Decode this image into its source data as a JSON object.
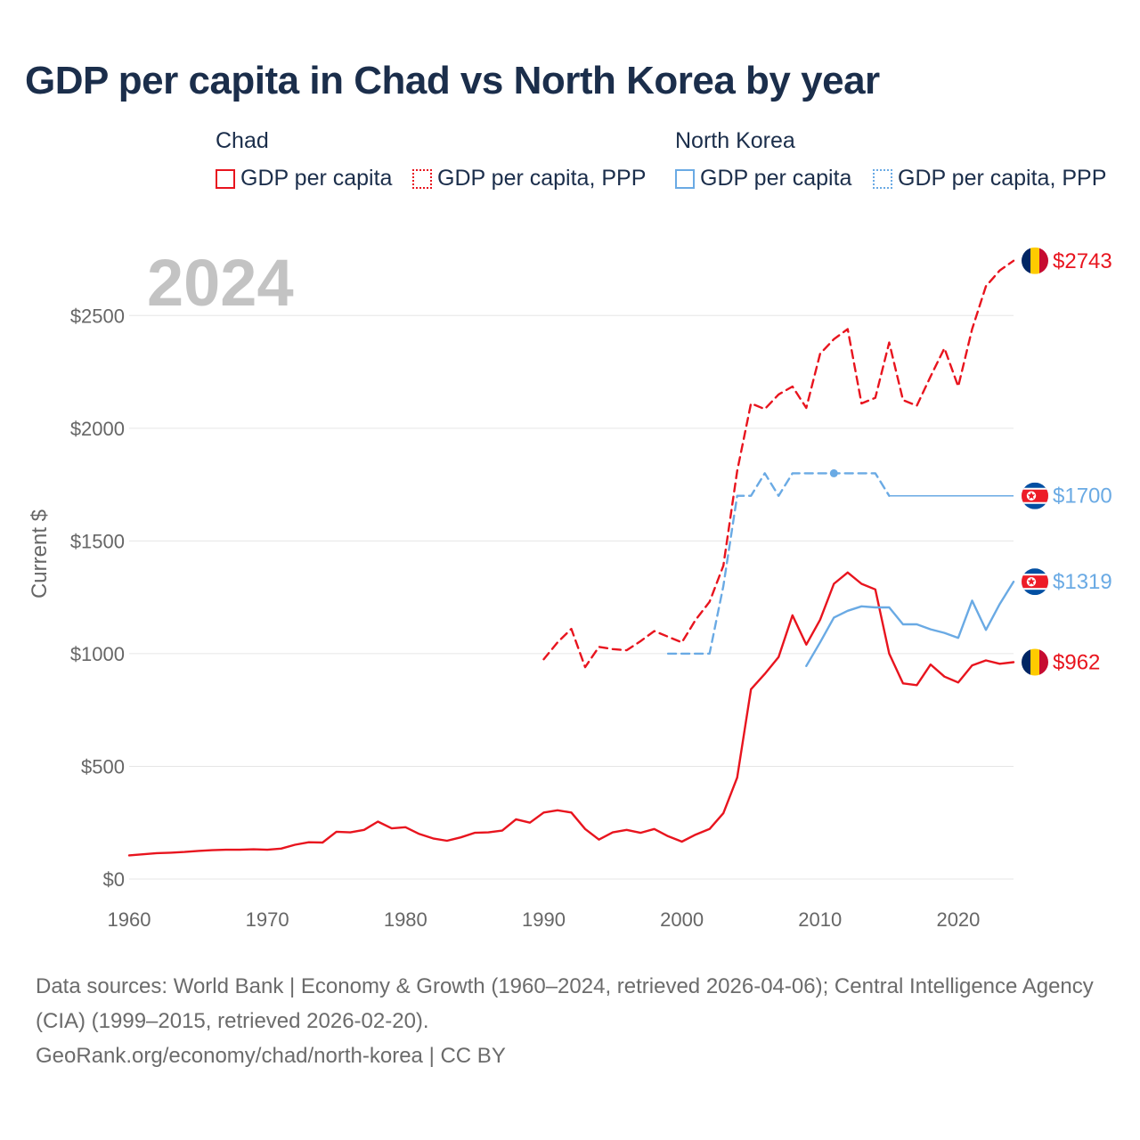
{
  "title": "GDP per capita in Chad vs North Korea by year",
  "legend": {
    "groups": [
      {
        "name": "Chad",
        "items": [
          "GDP per capita",
          "GDP per capita, PPP"
        ]
      },
      {
        "name": "North Korea",
        "items": [
          "GDP per capita",
          "GDP per capita, PPP"
        ]
      }
    ]
  },
  "year_watermark": "2024",
  "footer": {
    "sources": "Data sources: World Bank | Economy & Growth (1960–2024, retrieved 2026-04-06); Central Intelligence Agency (CIA) (1999–2015, retrieved 2026-02-20).",
    "credit": "GeoRank.org/economy/chad/north-korea | CC BY"
  },
  "colors": {
    "chad": "#e8141e",
    "north_korea": "#6aaae4",
    "grid": "#e6e6e6",
    "text": "#1b2e4b"
  },
  "chart_data": {
    "type": "line",
    "title": "GDP per capita in Chad vs North Korea by year",
    "xlabel": "",
    "ylabel": "Current $",
    "xlim": [
      1960,
      2024
    ],
    "ylim": [
      0,
      2750
    ],
    "x_ticks": [
      1960,
      1970,
      1980,
      1990,
      2000,
      2010,
      2020
    ],
    "y_ticks": [
      0,
      500,
      1000,
      1500,
      2000,
      2500
    ],
    "y_tick_labels": [
      "$0",
      "$500",
      "$1000",
      "$1500",
      "$2000",
      "$2500"
    ],
    "grid": true,
    "series": [
      {
        "name": "Chad — GDP per capita",
        "country": "Chad",
        "style": "solid",
        "color": "#e8141e",
        "end_label": "$962",
        "points": [
          [
            1960,
            105
          ],
          [
            1961,
            110
          ],
          [
            1962,
            115
          ],
          [
            1963,
            117
          ],
          [
            1964,
            120
          ],
          [
            1965,
            125
          ],
          [
            1966,
            128
          ],
          [
            1967,
            130
          ],
          [
            1968,
            130
          ],
          [
            1969,
            132
          ],
          [
            1970,
            130
          ],
          [
            1971,
            135
          ],
          [
            1972,
            152
          ],
          [
            1973,
            163
          ],
          [
            1974,
            162
          ],
          [
            1975,
            210
          ],
          [
            1976,
            207
          ],
          [
            1977,
            218
          ],
          [
            1978,
            255
          ],
          [
            1979,
            225
          ],
          [
            1980,
            230
          ],
          [
            1981,
            200
          ],
          [
            1982,
            180
          ],
          [
            1983,
            170
          ],
          [
            1984,
            185
          ],
          [
            1985,
            205
          ],
          [
            1986,
            207
          ],
          [
            1987,
            215
          ],
          [
            1988,
            265
          ],
          [
            1989,
            250
          ],
          [
            1990,
            295
          ],
          [
            1991,
            305
          ],
          [
            1992,
            295
          ],
          [
            1993,
            222
          ],
          [
            1994,
            175
          ],
          [
            1995,
            207
          ],
          [
            1996,
            218
          ],
          [
            1997,
            205
          ],
          [
            1998,
            222
          ],
          [
            1999,
            190
          ],
          [
            2000,
            166
          ],
          [
            2001,
            197
          ],
          [
            2002,
            222
          ],
          [
            2003,
            292
          ],
          [
            2004,
            450
          ],
          [
            2005,
            842
          ],
          [
            2006,
            910
          ],
          [
            2007,
            985
          ],
          [
            2008,
            1170
          ],
          [
            2009,
            1040
          ],
          [
            2010,
            1150
          ],
          [
            2011,
            1310
          ],
          [
            2012,
            1360
          ],
          [
            2013,
            1310
          ],
          [
            2014,
            1285
          ],
          [
            2015,
            1000
          ],
          [
            2016,
            868
          ],
          [
            2017,
            860
          ],
          [
            2018,
            952
          ],
          [
            2019,
            898
          ],
          [
            2020,
            872
          ],
          [
            2021,
            948
          ],
          [
            2022,
            970
          ],
          [
            2023,
            955
          ],
          [
            2024,
            962
          ]
        ]
      },
      {
        "name": "Chad — GDP per capita, PPP",
        "country": "Chad",
        "style": "dashed",
        "color": "#e8141e",
        "end_label": "$2743",
        "points": [
          [
            1990,
            975
          ],
          [
            1991,
            1050
          ],
          [
            1992,
            1110
          ],
          [
            1993,
            940
          ],
          [
            1994,
            1030
          ],
          [
            1995,
            1020
          ],
          [
            1996,
            1015
          ],
          [
            1997,
            1055
          ],
          [
            1998,
            1100
          ],
          [
            1999,
            1075
          ],
          [
            2000,
            1050
          ],
          [
            2001,
            1150
          ],
          [
            2002,
            1230
          ],
          [
            2003,
            1390
          ],
          [
            2004,
            1810
          ],
          [
            2005,
            2110
          ],
          [
            2006,
            2085
          ],
          [
            2007,
            2150
          ],
          [
            2008,
            2185
          ],
          [
            2009,
            2090
          ],
          [
            2010,
            2330
          ],
          [
            2011,
            2395
          ],
          [
            2012,
            2440
          ],
          [
            2013,
            2110
          ],
          [
            2014,
            2135
          ],
          [
            2015,
            2380
          ],
          [
            2016,
            2125
          ],
          [
            2017,
            2100
          ],
          [
            2018,
            2230
          ],
          [
            2019,
            2355
          ],
          [
            2020,
            2185
          ],
          [
            2021,
            2440
          ],
          [
            2022,
            2630
          ],
          [
            2023,
            2700
          ],
          [
            2024,
            2743
          ]
        ]
      },
      {
        "name": "North Korea — GDP per capita",
        "country": "North Korea",
        "style": "solid",
        "color": "#6aaae4",
        "end_label": "$1319",
        "points": [
          [
            2009,
            945
          ],
          [
            2010,
            1050
          ],
          [
            2011,
            1160
          ],
          [
            2012,
            1190
          ],
          [
            2013,
            1210
          ],
          [
            2014,
            1205
          ],
          [
            2015,
            1205
          ],
          [
            2016,
            1130
          ],
          [
            2017,
            1130
          ],
          [
            2018,
            1108
          ],
          [
            2019,
            1092
          ],
          [
            2020,
            1070
          ],
          [
            2021,
            1235
          ],
          [
            2022,
            1105
          ],
          [
            2023,
            1220
          ],
          [
            2024,
            1319
          ]
        ]
      },
      {
        "name": "North Korea — GDP per capita, PPP",
        "country": "North Korea",
        "style": "dashed",
        "color": "#6aaae4",
        "end_label": "$1700",
        "points": [
          [
            1999,
            1000
          ],
          [
            2000,
            1000
          ],
          [
            2001,
            1000
          ],
          [
            2002,
            1000
          ],
          [
            2003,
            1300
          ],
          [
            2004,
            1700
          ],
          [
            2005,
            1700
          ],
          [
            2006,
            1800
          ],
          [
            2007,
            1700
          ],
          [
            2008,
            1800
          ],
          [
            2009,
            1800
          ],
          [
            2010,
            1800
          ],
          [
            2011,
            1800
          ],
          [
            2012,
            1800
          ],
          [
            2013,
            1800
          ],
          [
            2014,
            1800
          ],
          [
            2015,
            1700
          ]
        ],
        "carried_forward": [
          [
            2015,
            1700
          ],
          [
            2024,
            1700
          ]
        ],
        "highlighted_point": [
          2011,
          1800
        ]
      }
    ]
  }
}
